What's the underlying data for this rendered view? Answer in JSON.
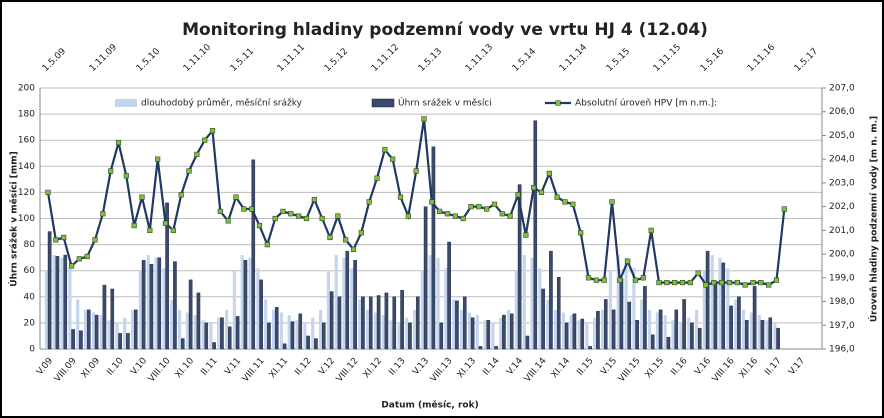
{
  "chart_data": {
    "type": "bar_line",
    "title": "Monitoring hladiny podzemní vody ve vrtu HJ 4 (12.04)",
    "xlabel": "Datum (měsíc, rok)",
    "ylabel": "Úhrn srážek v měsíci [mm]",
    "y2label": "Úroveň hladiny podzemní vody [m n. m.]",
    "top_axis_labels": [
      "1.5.09",
      "1.11.09",
      "1.5.10",
      "1.11.10",
      "1.5.11",
      "1.11.11",
      "1.5.12",
      "1.11.12",
      "1.5.13",
      "1.11.13",
      "1.5.14",
      "1.11.14",
      "1.5.15",
      "1.11.15",
      "1.5.16",
      "1.11.16",
      "1.5.17"
    ],
    "categories": [
      "V.09",
      null,
      null,
      "VIII.09",
      null,
      null,
      "XI.09",
      null,
      null,
      "II.10",
      null,
      null,
      "V.10",
      null,
      null,
      "VIII.10",
      null,
      null,
      "XI.10",
      null,
      null,
      "II.11",
      null,
      null,
      "V.11",
      null,
      null,
      "VIII.11",
      null,
      null,
      "XI.11",
      null,
      null,
      "II.12",
      null,
      null,
      "V.12",
      null,
      null,
      "VIII.12",
      null,
      null,
      "XI.12",
      null,
      null,
      "II.13",
      null,
      null,
      "V.13",
      null,
      null,
      "VIII.13",
      null,
      null,
      "XI.13",
      null,
      null,
      "II.14",
      null,
      null,
      "V.14",
      null,
      null,
      "VIII.14",
      null,
      null,
      "XI.14",
      null,
      null,
      "II.15",
      null,
      null,
      "V.15",
      null,
      null,
      "VIII.15",
      null,
      null,
      "XI.15",
      null,
      null,
      "II.16",
      null,
      null,
      "V.16",
      null,
      null,
      "VIII.16",
      null,
      null,
      "XI.16",
      null,
      null,
      "II.17",
      null,
      null,
      "V.17"
    ],
    "series": [
      {
        "name": "dlouhodobý průměr, měsíční srážky",
        "color": "#c5d5ee",
        "kind": "bar",
        "values": [
          60,
          72,
          70,
          62,
          38,
          30,
          28,
          26,
          22,
          20,
          24,
          30,
          60,
          72,
          70,
          62,
          38,
          30,
          28,
          26,
          22,
          20,
          24,
          30,
          60,
          72,
          70,
          62,
          38,
          30,
          28,
          26,
          22,
          20,
          24,
          30,
          60,
          72,
          70,
          62,
          38,
          30,
          28,
          26,
          22,
          20,
          24,
          30,
          60,
          72,
          70,
          62,
          38,
          30,
          28,
          26,
          22,
          20,
          24,
          30,
          60,
          72,
          70,
          62,
          38,
          30,
          28,
          26,
          22,
          20,
          24,
          30,
          60,
          72,
          70,
          62,
          38,
          30,
          28,
          26,
          22,
          20,
          24,
          30,
          60,
          72,
          70,
          62,
          38,
          30,
          28,
          26,
          22,
          20,
          null,
          null,
          null
        ]
      },
      {
        "name": "Úhrn srážek v měsíci",
        "color": "#3b4a6b",
        "kind": "bar",
        "values": [
          90,
          71,
          72,
          15,
          14,
          30,
          26,
          49,
          46,
          12,
          12,
          30,
          68,
          65,
          70,
          112,
          67,
          8,
          53,
          43,
          20,
          5,
          24,
          17,
          25,
          68,
          145,
          53,
          20,
          32,
          4,
          21,
          27,
          10,
          8,
          20,
          44,
          40,
          75,
          68,
          40,
          40,
          41,
          43,
          40,
          45,
          20,
          40,
          109,
          155,
          20,
          82,
          37,
          40,
          24,
          2,
          22,
          2,
          26,
          27,
          126,
          10,
          175,
          46,
          75,
          55,
          20,
          27,
          23,
          2,
          29,
          38,
          30,
          54,
          36,
          22,
          48,
          11,
          30,
          9,
          30,
          38,
          20,
          16,
          75,
          50,
          66,
          33,
          40,
          22,
          48,
          22,
          24,
          16,
          null,
          null,
          null
        ]
      },
      {
        "name": "Absolutní úroveň HPV [m n.m.]:",
        "color": "#1f3864",
        "marker_color": "#7fbf3f",
        "kind": "line",
        "axis": "y2",
        "values": [
          202.6,
          200.6,
          200.7,
          199.5,
          199.8,
          199.9,
          200.6,
          201.7,
          203.5,
          204.7,
          203.3,
          201.2,
          202.4,
          201.0,
          204.0,
          201.3,
          201.0,
          202.5,
          203.5,
          204.2,
          204.8,
          205.2,
          201.8,
          201.4,
          202.4,
          201.9,
          201.9,
          201.2,
          200.4,
          201.5,
          201.8,
          201.7,
          201.6,
          201.5,
          202.3,
          201.5,
          200.7,
          201.6,
          200.6,
          200.2,
          200.9,
          202.2,
          203.2,
          204.4,
          204.0,
          202.4,
          201.6,
          203.5,
          205.7,
          202.2,
          201.8,
          201.7,
          201.6,
          201.5,
          202.0,
          202.0,
          201.9,
          202.1,
          201.7,
          201.6,
          202.5,
          200.8,
          202.8,
          202.6,
          203.4,
          202.4,
          202.2,
          202.1,
          200.9,
          199.0,
          198.9,
          198.9,
          202.2,
          198.9,
          199.7,
          198.9,
          199.0,
          201.0,
          198.8,
          198.8,
          198.8,
          198.8,
          198.8,
          199.2,
          198.7,
          198.8,
          198.8,
          198.8,
          198.8,
          198.7,
          198.8,
          198.8,
          198.7,
          198.9,
          201.9,
          null,
          null
        ]
      }
    ],
    "ylim": [
      0,
      200
    ],
    "yticks": [
      0,
      20,
      40,
      60,
      80,
      100,
      120,
      140,
      160,
      180,
      200
    ],
    "y2lim": [
      196,
      207
    ],
    "y2ticks": [
      {
        "value": 196,
        "label": "196,0"
      },
      {
        "value": 197,
        "label": "197,0"
      },
      {
        "value": 198,
        "label": "198,0"
      },
      {
        "value": 199,
        "label": "199,0"
      },
      {
        "value": 200,
        "label": "200,0"
      },
      {
        "value": 201,
        "label": "201,0"
      },
      {
        "value": 202,
        "label": "202,0"
      },
      {
        "value": 203,
        "label": "203,0"
      },
      {
        "value": 204,
        "label": "204,0"
      },
      {
        "value": 205,
        "label": "205,0"
      },
      {
        "value": 206,
        "label": "206,0"
      },
      {
        "value": 207,
        "label": "207,0"
      }
    ],
    "grid": true,
    "legend": "top"
  }
}
